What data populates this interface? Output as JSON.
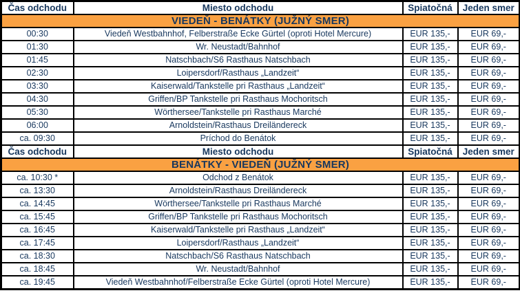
{
  "colors": {
    "band_background": "#FAA142",
    "text_navy": "#17375D",
    "border": "#000000",
    "row_background": "#FFFFFF"
  },
  "table": {
    "columns": [
      "Čas odchodu",
      "Miesto odchodu",
      "Spiatočná",
      "Jeden smer"
    ],
    "sections": [
      {
        "title": "VIEDEŇ - BENÁTKY (JUŽNÝ SMER)",
        "rows": [
          {
            "time": "00:30",
            "place": "Viedeň Westbahnhof, Felberstraße Ecke Gürtel (oproti Hotel Mercure)",
            "return_price": "EUR 135,-",
            "oneway_price": "EUR 69,-"
          },
          {
            "time": "01:30",
            "place": "Wr. Neustadt/Bahnhof",
            "return_price": "EUR 135,-",
            "oneway_price": "EUR 69,-"
          },
          {
            "time": "01:45",
            "place": "Natschbach/S6 Rasthaus Natschbach",
            "return_price": "EUR 135,-",
            "oneway_price": "EUR 69,-"
          },
          {
            "time": "02:30",
            "place": "Loipersdorf/Rasthaus „Landzeit“",
            "return_price": "EUR 135,-",
            "oneway_price": "EUR 69,-"
          },
          {
            "time": "03:30",
            "place": "Kaiserwald/Tankstelle pri Rasthaus „Landzeit“",
            "return_price": "EUR 135,-",
            "oneway_price": "EUR 69,-"
          },
          {
            "time": "04:30",
            "place": "Griffen/BP Tankstelle pri Rasthaus Mochoritsch",
            "return_price": "EUR 135,-",
            "oneway_price": "EUR 69,-"
          },
          {
            "time": "05:30",
            "place": "Wörthersee/Tankstelle pri Rasthaus Marché",
            "return_price": "EUR 135,-",
            "oneway_price": "EUR 69,-"
          },
          {
            "time": "06:00",
            "place": "Arnoldstein/Rasthaus Dreiländereck",
            "return_price": "EUR 135,-",
            "oneway_price": "EUR 69,-"
          },
          {
            "time": "ca. 09:30",
            "place": "Príchod do Benátok",
            "return_price": "EUR 135,-",
            "oneway_price": "EUR 69,-"
          }
        ]
      },
      {
        "title": "BENÁTKY - VIEDEŇ (JUŽNÝ SMER)",
        "rows": [
          {
            "time": "ca. 10:30 *",
            "place": "Odchod z Benátok",
            "return_price": "EUR 135,-",
            "oneway_price": "EUR 69,-"
          },
          {
            "time": "ca. 13:30",
            "place": "Arnoldstein/Rasthaus Dreiländereck",
            "return_price": "EUR 135,-",
            "oneway_price": "EUR 69,-"
          },
          {
            "time": "ca. 14:45",
            "place": "Wörthersee/Tankstelle pri Rasthaus Marché",
            "return_price": "EUR 135,-",
            "oneway_price": "EUR 69,-"
          },
          {
            "time": "ca. 15:45",
            "place": "Griffen/BP Tankstelle pri Rasthaus Mochoritsch",
            "return_price": "EUR 135,-",
            "oneway_price": "EUR 69,-"
          },
          {
            "time": "ca. 16:45",
            "place": "Kaiserwald/Tankstelle pri Rasthaus „Landzeit“",
            "return_price": "EUR 135,-",
            "oneway_price": "EUR 69,-"
          },
          {
            "time": "ca. 17:45",
            "place": "Loipersdorf/Rasthaus „Landzeit“",
            "return_price": "EUR 135,-",
            "oneway_price": "EUR 69,-"
          },
          {
            "time": "ca. 18:30",
            "place": "Natschbach/S6 Rasthaus Natschbach",
            "return_price": "EUR 135,-",
            "oneway_price": "EUR 69,-"
          },
          {
            "time": "ca. 18:45",
            "place": "Wr. Neustadt/Bahnhof",
            "return_price": "EUR 135,-",
            "oneway_price": "EUR 69,-"
          },
          {
            "time": "ca. 19:45",
            "place": "Viedeň Westbahnhof/Felberstraße Ecke Gürtel (oproti Hotel Mercure)",
            "return_price": "EUR 135,-",
            "oneway_price": "EUR 69,-"
          }
        ]
      }
    ]
  }
}
